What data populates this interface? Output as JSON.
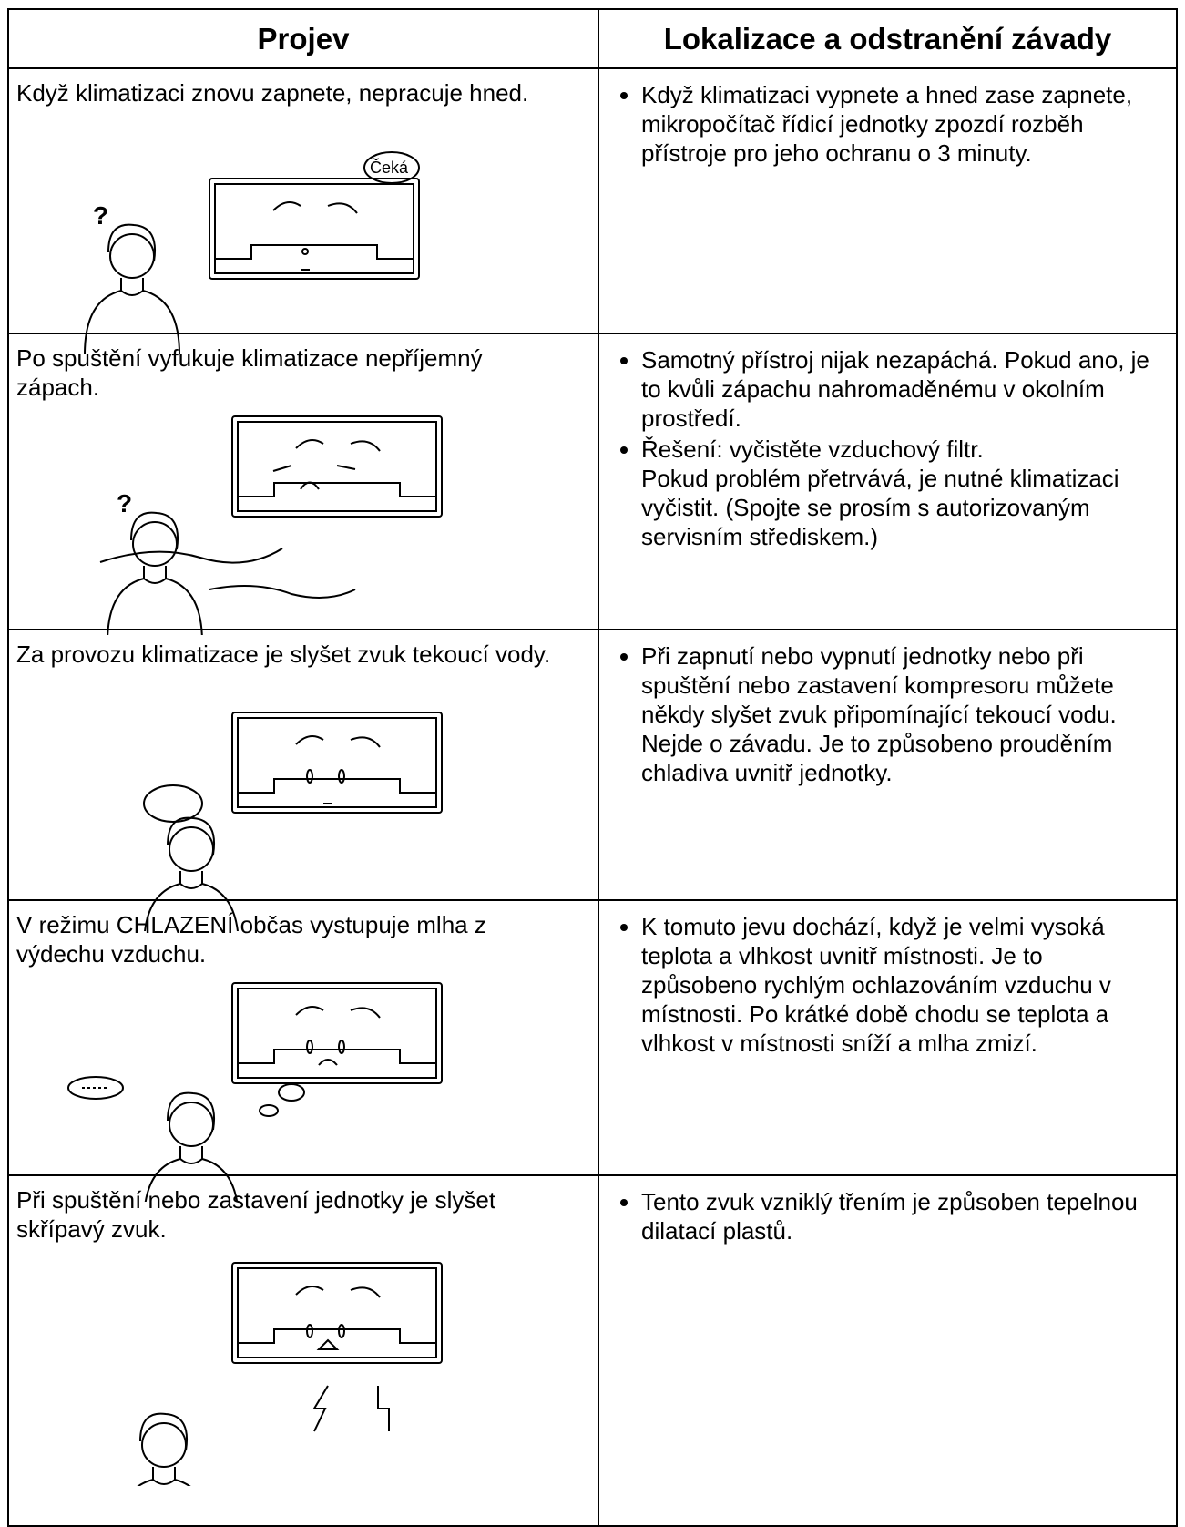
{
  "table": {
    "header": [
      "Projev",
      "Lokalizace a odstranění závady"
    ],
    "rows": [
      {
        "symptom": "Když klimatizaci znovu zapnete, nepracuje hned.",
        "bubble": "Čeká",
        "remedies": [
          [
            "Když klimatizaci vypnete a hned zase zapnete, mikropočítač řídicí jednotky zpozdí rozběh přístroje pro jeho ochranu o 3 minuty."
          ]
        ]
      },
      {
        "symptom": "Po spuštění vyfukuje klimatizace nepříjemný zápach.",
        "remedies": [
          [
            "Samotný přístroj nijak nezapáchá. Pokud ano, je to kvůli zápachu nahromaděnému v okolním prostředí."
          ],
          [
            "Řešení: vyčistěte vzduchový filtr.",
            "Pokud problém přetrvává, je nutné klimatizaci vyčistit. (Spojte se prosím s autorizovaným servisním střediskem.)"
          ]
        ]
      },
      {
        "symptom": "Za provozu klimatizace je slyšet zvuk tekoucí vody.",
        "remedies": [
          [
            "Při zapnutí nebo vypnutí jednotky nebo při spuštění nebo zastavení kompresoru můžete někdy slyšet zvuk připomínající tekoucí vodu. Nejde o závadu. Je to způsobeno prouděním chladiva uvnitř jednotky."
          ]
        ]
      },
      {
        "symptom": "V režimu CHLAZENÍ občas vystupuje mlha z výdechu vzduchu.",
        "remedies": [
          [
            "K tomuto jevu dochází, když je velmi vysoká teplota a vlhkost uvnitř místnosti. Je to způsobeno rychlým ochlazováním vzduchu v místnosti. Po krátké době chodu se teplota a vlhkost v místnosti sníží a mlha zmizí."
          ]
        ]
      },
      {
        "symptom": "Při spuštění nebo zastavení jednotky je slyšet skřípavý zvuk.",
        "remedies": [
          [
            "Tento zvuk vzniklý třením je způsoben tepelnou dilatací plastů."
          ]
        ]
      }
    ]
  }
}
